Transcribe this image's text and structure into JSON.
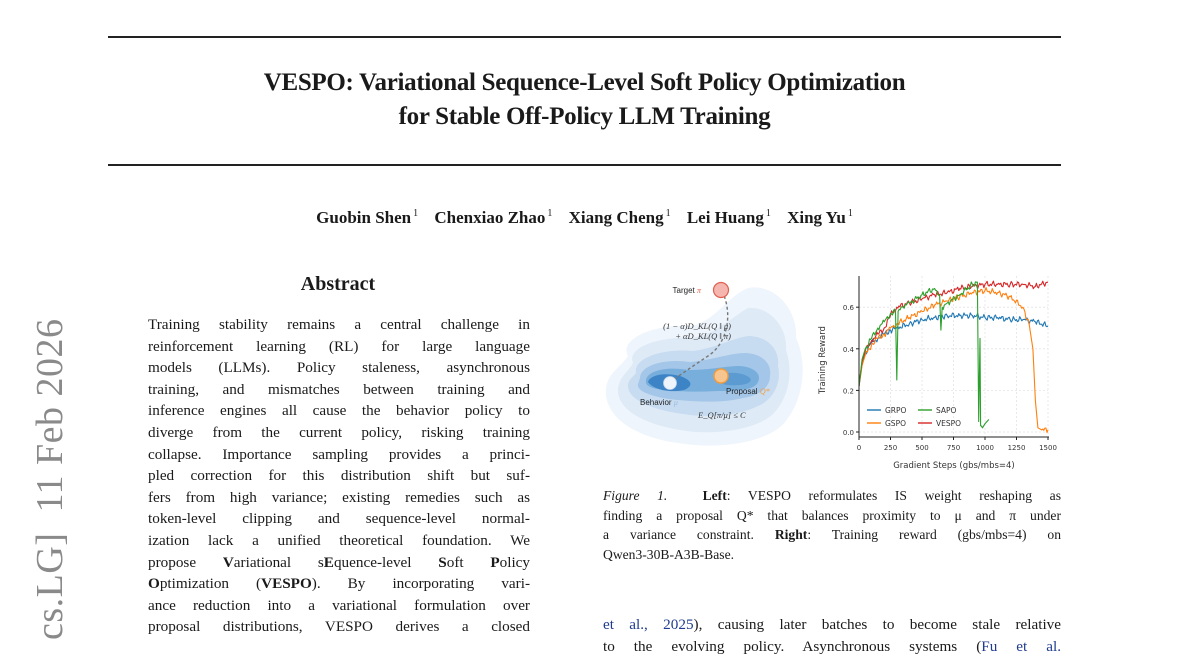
{
  "paper": {
    "title_line1": "VESPO: Variational Sequence-Level Soft Policy Optimization",
    "title_line2": "for Stable Off-Policy LLM Training",
    "authors": [
      {
        "name": "Guobin Shen",
        "affil": "1"
      },
      {
        "name": "Chenxiao Zhao",
        "affil": "1"
      },
      {
        "name": "Xiang Cheng",
        "affil": "1"
      },
      {
        "name": "Lei Huang",
        "affil": "1"
      },
      {
        "name": "Xing Yu",
        "affil": "1"
      }
    ],
    "arxiv_stamp": "cs.LG]  11 Feb 2026"
  },
  "abstract": {
    "heading": "Abstract",
    "lines": [
      "Training stability remains a central challenge in",
      "reinforcement learning (RL) for large language",
      "models (LLMs). Policy staleness, asynchronous",
      "training, and mismatches between training and",
      "inference engines all cause the behavior policy to",
      "diverge from the current policy, risking training",
      "collapse. Importance sampling provides a princi-",
      "pled correction for this distribution shift but suf-",
      "fers from high variance; existing remedies such as",
      "token-level clipping and sequence-level normal-",
      "ization lack a unified theoretical foundation. We"
    ],
    "line12": {
      "a": "propose ",
      "b": "V",
      "c": "ariational s",
      "d": "E",
      "e": "quence-level ",
      "f": "S",
      "g": "oft ",
      "h": "P",
      "i": "olicy"
    },
    "line13": {
      "a": "O",
      "b": "ptimization (",
      "c": "VESPO",
      "d": "). By incorporating vari-"
    },
    "line14": "ance reduction into a variational formulation over",
    "line15": "proposal distributions, VESPO derives a closed"
  },
  "figure": {
    "diagram": {
      "target_label": "Target",
      "target_symbol": "π",
      "objective_line1": "(1 − α)D_KL(Q ‖ μ)",
      "objective_line2": "+ αD_KL(Q ‖ π)",
      "behavior_label": "Behavior",
      "behavior_symbol": "μ",
      "proposal_label": "Proposal",
      "proposal_symbol": "Q*",
      "constraint": "E_Q[π/μ] ≤ C",
      "colors": {
        "target": "#f4b6ae",
        "target_stroke": "#e06050",
        "proposal": "#f7c58f",
        "proposal_stroke": "#f39c3c",
        "behavior": "#eef4fb",
        "density_dark": "#2f78be",
        "density_light": "#e6f0fa"
      }
    },
    "caption": {
      "label": "Figure 1.",
      "line1_bold": "Left",
      "line1_rest": ":  VESPO reformulates IS weight reshaping as",
      "line2": "finding a proposal Q* that balances proximity to μ and π under",
      "line3_a": "a variance constraint.  ",
      "line3_bold": "Right",
      "line3_rest": ": Training reward (gbs/mbs=4) on",
      "line4": "Qwen3-30B-A3B-Base."
    }
  },
  "body": {
    "line1_link": "et al., 2025",
    "line1_rest": "), causing later batches to become stale relative",
    "line2_a": "to the evolving policy.  Asynchronous systems (",
    "line2_link": "Fu et al."
  },
  "chart_data": {
    "type": "line",
    "title": "",
    "xlabel": "Gradient Steps (gbs/mbs=4)",
    "ylabel": "Training Reward",
    "xlim": [
      0,
      1500
    ],
    "ylim": [
      0.0,
      0.75
    ],
    "xticks": [
      0,
      250,
      500,
      750,
      1000,
      1250,
      1500
    ],
    "yticks": [
      0.0,
      0.2,
      0.4,
      0.6
    ],
    "grid": true,
    "legend_position": "lower left",
    "series": [
      {
        "name": "GRPO",
        "color": "#1f77b4",
        "x": [
          0,
          25,
          50,
          100,
          150,
          200,
          250,
          300,
          400,
          500,
          600,
          700,
          800,
          900,
          1000,
          1100,
          1200,
          1300,
          1400,
          1500
        ],
        "y": [
          0.22,
          0.33,
          0.38,
          0.43,
          0.45,
          0.47,
          0.49,
          0.5,
          0.52,
          0.54,
          0.55,
          0.56,
          0.56,
          0.56,
          0.55,
          0.55,
          0.54,
          0.54,
          0.53,
          0.51
        ]
      },
      {
        "name": "GSPO",
        "color": "#ff7f0e",
        "x": [
          0,
          25,
          50,
          100,
          150,
          200,
          250,
          300,
          400,
          500,
          600,
          700,
          800,
          900,
          1000,
          1100,
          1200,
          1300,
          1350,
          1380,
          1400,
          1420,
          1450,
          1500
        ],
        "y": [
          0.22,
          0.32,
          0.37,
          0.42,
          0.45,
          0.47,
          0.5,
          0.52,
          0.55,
          0.58,
          0.61,
          0.63,
          0.65,
          0.67,
          0.68,
          0.67,
          0.65,
          0.6,
          0.52,
          0.4,
          0.15,
          0.02,
          0.01,
          0.01
        ]
      },
      {
        "name": "SAPO",
        "color": "#2ca02c",
        "x": [
          0,
          25,
          50,
          100,
          150,
          200,
          250,
          290,
          300,
          310,
          350,
          400,
          500,
          600,
          640,
          650,
          660,
          700,
          800,
          900,
          940,
          950,
          960,
          965,
          970,
          980,
          990,
          1000,
          1030
        ],
        "y": [
          0.22,
          0.35,
          0.4,
          0.45,
          0.5,
          0.53,
          0.57,
          0.58,
          0.25,
          0.58,
          0.6,
          0.62,
          0.66,
          0.69,
          0.66,
          0.49,
          0.6,
          0.62,
          0.66,
          0.71,
          0.72,
          0.05,
          0.45,
          0.03,
          0.03,
          0.02,
          0.03,
          0.04,
          0.06
        ]
      },
      {
        "name": "VESPO",
        "color": "#d62728",
        "x": [
          0,
          25,
          50,
          100,
          150,
          200,
          250,
          300,
          400,
          500,
          600,
          700,
          800,
          900,
          1000,
          1100,
          1200,
          1300,
          1400,
          1500
        ],
        "y": [
          0.22,
          0.34,
          0.39,
          0.44,
          0.47,
          0.5,
          0.56,
          0.6,
          0.62,
          0.64,
          0.66,
          0.67,
          0.69,
          0.7,
          0.71,
          0.71,
          0.71,
          0.71,
          0.7,
          0.72
        ]
      }
    ]
  }
}
